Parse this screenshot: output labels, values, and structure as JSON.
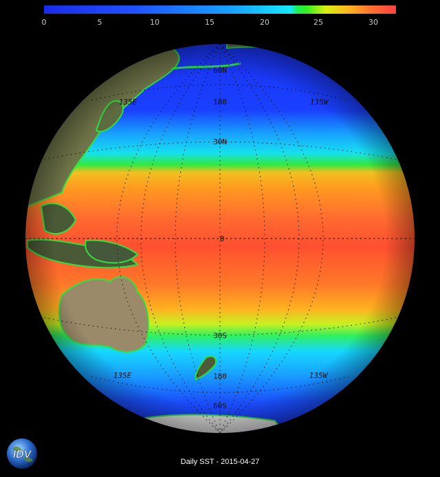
{
  "colorbar": {
    "ticks": [
      "0",
      "5",
      "10",
      "15",
      "20",
      "25",
      "30"
    ],
    "colors": [
      "#1a2ce8",
      "#2050ff",
      "#16a8ff",
      "#16e8ff",
      "#18f050",
      "#d8f010",
      "#ffb020",
      "#ff7030",
      "#ff4040"
    ]
  },
  "grid_labels": {
    "lat_60n": "60N",
    "lat_30n": "30N",
    "equator": "0",
    "lat_30s": "30S",
    "lat_60s": "60S",
    "lon_180_north": "180",
    "lon_180_south": "180",
    "lon_135e_north": "135E",
    "lon_135w_north": "135W",
    "lon_135e_south": "135E",
    "lon_135w_south": "135W"
  },
  "logo": {
    "text": "IDV"
  },
  "caption": "Daily SST - 2015-04-27"
}
